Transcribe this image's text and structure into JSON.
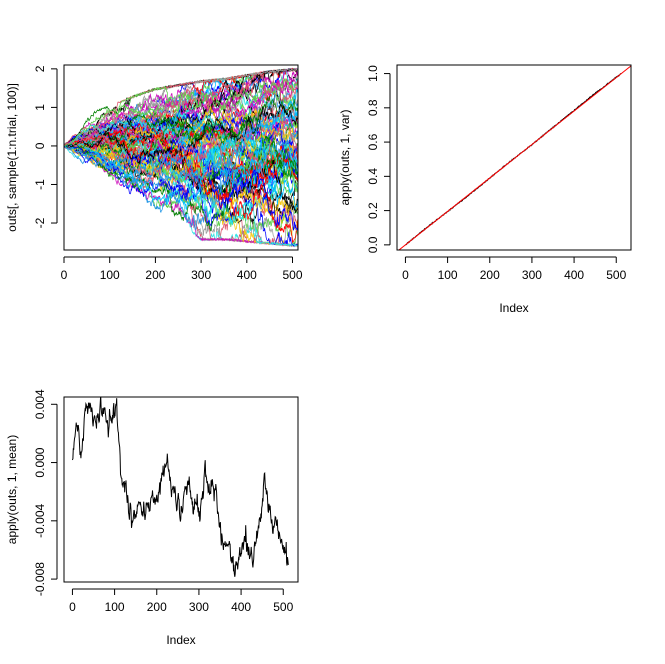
{
  "chart_data": [
    {
      "type": "line",
      "subtype": "random-walk paths (100 series)",
      "title": "",
      "xlabel": "",
      "ylabel": "outs[, sample(1:n.trial, 100)]",
      "xlim": [
        0,
        512
      ],
      "ylim": [
        -2.7,
        2.1
      ],
      "xticks": [
        0,
        100,
        200,
        300,
        400,
        500
      ],
      "yticks": [
        -2,
        -1,
        0,
        1,
        2
      ],
      "n_points": 513,
      "n_series": 100,
      "envelope": {
        "x": [
          0,
          50,
          100,
          150,
          200,
          250,
          300,
          350,
          400,
          450,
          500
        ],
        "upper": [
          0.35,
          0.85,
          1.05,
          1.3,
          1.5,
          1.6,
          1.7,
          1.75,
          1.85,
          1.95,
          2.0
        ],
        "lower": [
          -0.35,
          -0.85,
          -1.15,
          -1.45,
          -1.65,
          -1.95,
          -2.45,
          -2.45,
          -2.5,
          -2.55,
          -2.6
        ]
      },
      "palette": [
        "#000000",
        "#df536b",
        "#61d04f",
        "#2297e6",
        "#28e2e5",
        "#cd0bbc",
        "#f5c710",
        "#9e9e9e",
        "#ff0000",
        "#0000ff",
        "#00bfff",
        "#008000"
      ],
      "grid": false,
      "legend": "none"
    },
    {
      "type": "line",
      "title": "",
      "xlabel": "Index",
      "ylabel": "apply(outs, 1, var)",
      "xlim": [
        -20,
        535
      ],
      "ylim": [
        -0.03,
        1.05
      ],
      "xticks": [
        0,
        100,
        200,
        300,
        400,
        500
      ],
      "yticks": [
        0.0,
        0.2,
        0.4,
        0.6,
        0.8,
        1.0
      ],
      "ytick_labels": [
        "0.0",
        "0.2",
        "0.4",
        "0.6",
        "0.8",
        "1.0"
      ],
      "series": [
        {
          "x": [
            0,
            50,
            100,
            150,
            200,
            250,
            300,
            350,
            400,
            450,
            512
          ],
          "values": [
            0.0,
            0.1,
            0.195,
            0.29,
            0.39,
            0.49,
            0.585,
            0.685,
            0.785,
            0.885,
            1.0
          ],
          "color": "#000000"
        }
      ],
      "reference_line": {
        "intercept": 0,
        "slope": 0.001953,
        "color": "#ff0000"
      },
      "grid": false,
      "legend": "none"
    },
    {
      "type": "line",
      "title": "",
      "xlabel": "Index",
      "ylabel": "apply(outs, 1, mean)",
      "xlim": [
        -20,
        535
      ],
      "ylim": [
        -0.0082,
        0.0045
      ],
      "xticks": [
        0,
        100,
        200,
        300,
        400,
        500
      ],
      "yticks": [
        -0.008,
        -0.004,
        0.0,
        0.004
      ],
      "ytick_labels": [
        "-0.008",
        "-0.004",
        "0.000",
        "0.004"
      ],
      "series": [
        {
          "x": [
            0,
            10,
            20,
            30,
            40,
            55,
            70,
            85,
            95,
            105,
            115,
            125,
            135,
            145,
            160,
            175,
            190,
            200,
            210,
            220,
            230,
            245,
            260,
            270,
            285,
            300,
            315,
            330,
            345,
            360,
            375,
            385,
            400,
            415,
            430,
            445,
            455,
            465,
            475,
            490,
            500,
            512
          ],
          "values": [
            0.0,
            0.0025,
            0.001,
            0.0032,
            0.0038,
            0.0028,
            0.0035,
            0.0027,
            0.0036,
            0.0032,
            0.0,
            -0.0018,
            -0.0035,
            -0.0038,
            -0.0027,
            -0.0033,
            -0.002,
            -0.0027,
            -0.0013,
            0.0003,
            -0.0012,
            -0.0025,
            -0.0032,
            -0.0012,
            -0.0025,
            -0.0033,
            -0.0012,
            -0.0018,
            -0.0035,
            -0.0055,
            -0.0062,
            -0.0075,
            -0.0062,
            -0.0055,
            -0.0068,
            -0.0042,
            -0.0008,
            -0.0025,
            -0.0042,
            -0.0048,
            -0.006,
            -0.0068
          ],
          "color": "#000000"
        }
      ],
      "grid": false,
      "legend": "none"
    }
  ]
}
